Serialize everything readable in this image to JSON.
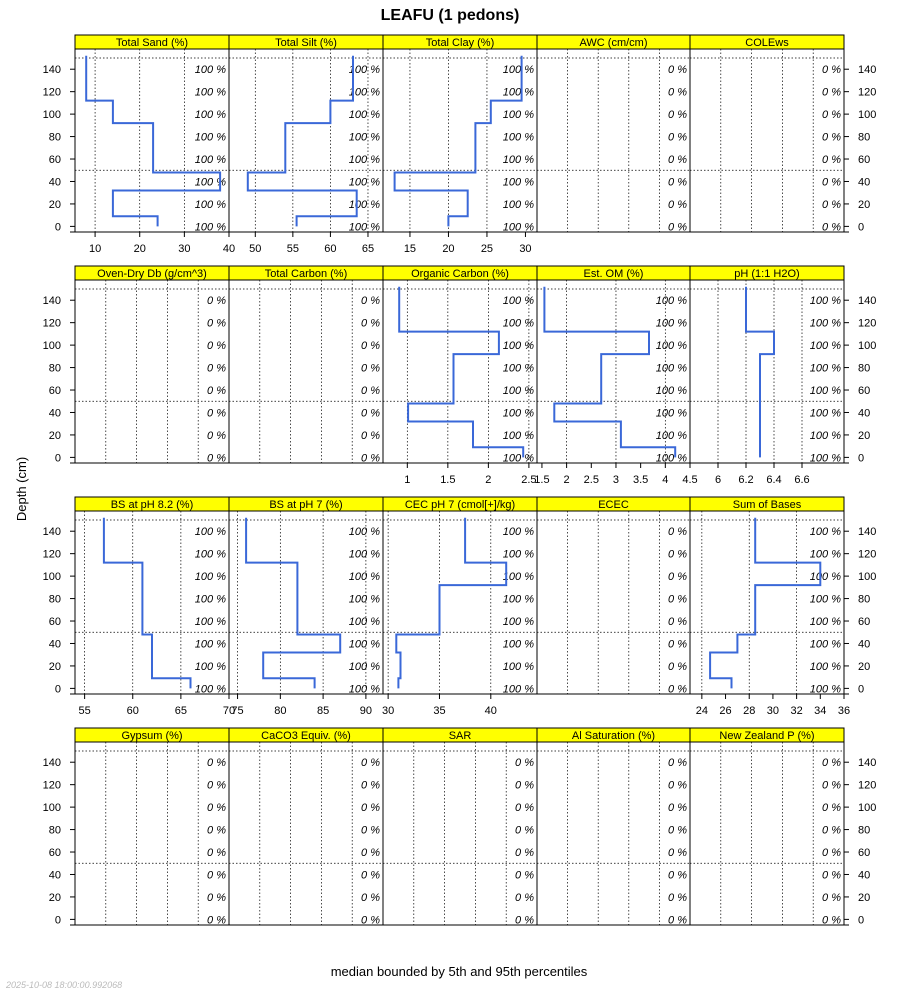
{
  "chart_data": {
    "type": "line",
    "title": "LEAFU (1 pedons)",
    "ylabel": "Depth (cm)",
    "xlabel": "median bounded by 5th and 95th percentiles",
    "timestamp": "2025-10-08 18:00:00.992068",
    "ylim": [
      158,
      -5
    ],
    "depth_ticks": [
      0,
      20,
      40,
      60,
      80,
      100,
      120,
      140
    ],
    "horizon_depths": [
      50,
      150
    ],
    "depth_levels": [
      0,
      20,
      40,
      60,
      80,
      100,
      120,
      140
    ],
    "colors": {
      "line": "#3a68d8",
      "strip": "#ffff00"
    },
    "panels": [
      {
        "name": "Total Sand (%)",
        "xlim": [
          5.5,
          40
        ],
        "ticks": [
          10,
          20,
          30,
          40
        ],
        "grid": [
          10,
          20,
          30
        ],
        "pct": [
          "100 %",
          "100 %",
          "100 %",
          "100 %",
          "100 %",
          "100 %",
          "100 %",
          "100 %"
        ],
        "profile": [
          {
            "top": 0,
            "bottom": 9,
            "value": 24
          },
          {
            "top": 9,
            "bottom": 32,
            "value": 14
          },
          {
            "top": 32,
            "bottom": 48,
            "value": 38
          },
          {
            "top": 48,
            "bottom": 92,
            "value": 23
          },
          {
            "top": 92,
            "bottom": 112,
            "value": 14
          },
          {
            "top": 112,
            "bottom": 152,
            "value": 8
          }
        ]
      },
      {
        "name": "Total Silt (%)",
        "xlim": [
          46.5,
          67
        ],
        "ticks": [
          50,
          55,
          60,
          65
        ],
        "grid": [
          50,
          55,
          60,
          65
        ],
        "pct": [
          "100 %",
          "100 %",
          "100 %",
          "100 %",
          "100 %",
          "100 %",
          "100 %",
          "100 %"
        ],
        "profile": [
          {
            "top": 0,
            "bottom": 9,
            "value": 55.5
          },
          {
            "top": 9,
            "bottom": 32,
            "value": 63.5
          },
          {
            "top": 32,
            "bottom": 48,
            "value": 49
          },
          {
            "top": 48,
            "bottom": 92,
            "value": 54
          },
          {
            "top": 92,
            "bottom": 112,
            "value": 60
          },
          {
            "top": 112,
            "bottom": 152,
            "value": 63
          }
        ]
      },
      {
        "name": "Total Clay (%)",
        "xlim": [
          11.5,
          31.5
        ],
        "ticks": [
          15,
          20,
          25,
          30
        ],
        "grid": [
          15,
          20,
          25
        ],
        "pct": [
          "100 %",
          "100 %",
          "100 %",
          "100 %",
          "100 %",
          "100 %",
          "100 %",
          "100 %"
        ],
        "profile": [
          {
            "top": 0,
            "bottom": 9,
            "value": 20
          },
          {
            "top": 9,
            "bottom": 32,
            "value": 22.5
          },
          {
            "top": 32,
            "bottom": 48,
            "value": 13
          },
          {
            "top": 48,
            "bottom": 92,
            "value": 23.5
          },
          {
            "top": 92,
            "bottom": 112,
            "value": 25.5
          },
          {
            "top": 112,
            "bottom": 152,
            "value": 29.5
          }
        ]
      },
      {
        "name": "AWC (cm/cm)",
        "xlim": [
          0,
          1
        ],
        "ticks": [],
        "grid": [
          0.2,
          0.4,
          0.6,
          0.8
        ],
        "pct": [
          "0 %",
          "0 %",
          "0 %",
          "0 %",
          "0 %",
          "0 %",
          "0 %",
          "0 %"
        ],
        "profile": []
      },
      {
        "name": "COLEws",
        "xlim": [
          0,
          1
        ],
        "ticks": [],
        "grid": [
          0.2,
          0.4,
          0.6,
          0.8
        ],
        "pct": [
          "0 %",
          "0 %",
          "0 %",
          "0 %",
          "0 %",
          "0 %",
          "0 %",
          "0 %"
        ],
        "profile": []
      },
      {
        "name": "Oven-Dry Db (g/cm^3)",
        "xlim": [
          0,
          1
        ],
        "ticks": [],
        "grid": [
          0.2,
          0.4,
          0.6,
          0.8
        ],
        "pct": [
          "0 %",
          "0 %",
          "0 %",
          "0 %",
          "0 %",
          "0 %",
          "0 %",
          "0 %"
        ],
        "profile": []
      },
      {
        "name": "Total Carbon (%)",
        "xlim": [
          0,
          1
        ],
        "ticks": [],
        "grid": [
          0.2,
          0.4,
          0.6,
          0.8
        ],
        "pct": [
          "0 %",
          "0 %",
          "0 %",
          "0 %",
          "0 %",
          "0 %",
          "0 %",
          "0 %"
        ],
        "profile": []
      },
      {
        "name": "Organic Carbon (%)",
        "xlim": [
          0.7,
          2.6
        ],
        "ticks": [
          1.0,
          1.5,
          2.0,
          2.5
        ],
        "grid": [
          1.0,
          1.5,
          2.0,
          2.5
        ],
        "pct": [
          "100 %",
          "100 %",
          "100 %",
          "100 %",
          "100 %",
          "100 %",
          "100 %",
          "100 %"
        ],
        "profile": [
          {
            "top": 0,
            "bottom": 9,
            "value": 2.43
          },
          {
            "top": 9,
            "bottom": 32,
            "value": 1.81
          },
          {
            "top": 32,
            "bottom": 48,
            "value": 1.01
          },
          {
            "top": 48,
            "bottom": 92,
            "value": 1.57
          },
          {
            "top": 92,
            "bottom": 112,
            "value": 2.13
          },
          {
            "top": 112,
            "bottom": 152,
            "value": 0.9
          }
        ]
      },
      {
        "name": "Est. OM (%)",
        "xlim": [
          1.4,
          4.5
        ],
        "ticks": [
          1.5,
          2.0,
          2.5,
          3.0,
          3.5,
          4.0,
          4.5
        ],
        "grid": [
          2.0,
          3.0,
          4.0
        ],
        "pct": [
          "100 %",
          "100 %",
          "100 %",
          "100 %",
          "100 %",
          "100 %",
          "100 %",
          "100 %"
        ],
        "profile": [
          {
            "top": 0,
            "bottom": 9,
            "value": 4.2
          },
          {
            "top": 9,
            "bottom": 32,
            "value": 3.1
          },
          {
            "top": 32,
            "bottom": 48,
            "value": 1.75
          },
          {
            "top": 48,
            "bottom": 92,
            "value": 2.7
          },
          {
            "top": 92,
            "bottom": 112,
            "value": 3.67
          },
          {
            "top": 112,
            "bottom": 152,
            "value": 1.55
          }
        ]
      },
      {
        "name": "pH (1:1 H2O)",
        "xlim": [
          5.8,
          6.9
        ],
        "ticks": [
          6.0,
          6.2,
          6.4,
          6.6
        ],
        "grid": [
          6.0,
          6.2,
          6.4,
          6.6
        ],
        "pct": [
          "100 %",
          "100 %",
          "100 %",
          "100 %",
          "100 %",
          "100 %",
          "100 %",
          "100 %"
        ],
        "profile": [
          {
            "top": 0,
            "bottom": 92,
            "value": 6.3
          },
          {
            "top": 92,
            "bottom": 112,
            "value": 6.4
          },
          {
            "top": 112,
            "bottom": 152,
            "value": 6.2
          }
        ]
      },
      {
        "name": "BS at pH 8.2 (%)",
        "xlim": [
          54,
          70
        ],
        "ticks": [
          55,
          60,
          65,
          70
        ],
        "grid": [
          55,
          60,
          65
        ],
        "pct": [
          "100 %",
          "100 %",
          "100 %",
          "100 %",
          "100 %",
          "100 %",
          "100 %",
          "100 %"
        ],
        "profile": [
          {
            "top": 0,
            "bottom": 9,
            "value": 66
          },
          {
            "top": 9,
            "bottom": 48,
            "value": 62
          },
          {
            "top": 48,
            "bottom": 112,
            "value": 61
          },
          {
            "top": 112,
            "bottom": 152,
            "value": 57
          }
        ]
      },
      {
        "name": "BS at pH 7 (%)",
        "xlim": [
          74,
          92
        ],
        "ticks": [
          75,
          80,
          85,
          90
        ],
        "grid": [
          75,
          80,
          85,
          90
        ],
        "pct": [
          "100 %",
          "100 %",
          "100 %",
          "100 %",
          "100 %",
          "100 %",
          "100 %",
          "100 %"
        ],
        "profile": [
          {
            "top": 0,
            "bottom": 9,
            "value": 84
          },
          {
            "top": 9,
            "bottom": 32,
            "value": 78
          },
          {
            "top": 32,
            "bottom": 48,
            "value": 87
          },
          {
            "top": 48,
            "bottom": 112,
            "value": 82
          },
          {
            "top": 112,
            "bottom": 152,
            "value": 76
          }
        ]
      },
      {
        "name": "CEC pH 7 (cmol[+]/kg)",
        "xlim": [
          29.5,
          44.5
        ],
        "ticks": [
          30,
          35,
          40
        ],
        "grid": [
          30,
          35,
          40
        ],
        "pct": [
          "100 %",
          "100 %",
          "100 %",
          "100 %",
          "100 %",
          "100 %",
          "100 %",
          "100 %"
        ],
        "profile": [
          {
            "top": 0,
            "bottom": 9,
            "value": 31
          },
          {
            "top": 9,
            "bottom": 32,
            "value": 31.2
          },
          {
            "top": 32,
            "bottom": 48,
            "value": 30.8
          },
          {
            "top": 48,
            "bottom": 92,
            "value": 35
          },
          {
            "top": 92,
            "bottom": 112,
            "value": 41.5
          },
          {
            "top": 112,
            "bottom": 152,
            "value": 37.5
          }
        ]
      },
      {
        "name": "ECEC",
        "xlim": [
          0,
          1
        ],
        "ticks": [],
        "grid": [
          0.2,
          0.4,
          0.6,
          0.8
        ],
        "pct": [
          "0 %",
          "0 %",
          "0 %",
          "0 %",
          "0 %",
          "0 %",
          "0 %",
          "0 %"
        ],
        "profile": []
      },
      {
        "name": "Sum of Bases",
        "xlim": [
          23,
          36
        ],
        "ticks": [
          24,
          26,
          28,
          30,
          32,
          34,
          36
        ],
        "grid": [
          24,
          28,
          32
        ],
        "pct": [
          "100 %",
          "100 %",
          "100 %",
          "100 %",
          "100 %",
          "100 %",
          "100 %",
          "100 %"
        ],
        "profile": [
          {
            "top": 0,
            "bottom": 9,
            "value": 26.5
          },
          {
            "top": 9,
            "bottom": 32,
            "value": 24.7
          },
          {
            "top": 32,
            "bottom": 48,
            "value": 27
          },
          {
            "top": 48,
            "bottom": 92,
            "value": 28.5
          },
          {
            "top": 92,
            "bottom": 112,
            "value": 34
          },
          {
            "top": 112,
            "bottom": 152,
            "value": 28.5
          }
        ]
      },
      {
        "name": "Gypsum (%)",
        "xlim": [
          0,
          1
        ],
        "ticks": [],
        "grid": [
          0.2,
          0.4,
          0.6,
          0.8
        ],
        "pct": [
          "0 %",
          "0 %",
          "0 %",
          "0 %",
          "0 %",
          "0 %",
          "0 %",
          "0 %"
        ],
        "profile": []
      },
      {
        "name": "CaCO3 Equiv. (%)",
        "xlim": [
          0,
          1
        ],
        "ticks": [],
        "grid": [
          0.2,
          0.4,
          0.6,
          0.8
        ],
        "pct": [
          "0 %",
          "0 %",
          "0 %",
          "0 %",
          "0 %",
          "0 %",
          "0 %",
          "0 %"
        ],
        "profile": []
      },
      {
        "name": "SAR",
        "xlim": [
          0,
          1
        ],
        "ticks": [],
        "grid": [
          0.2,
          0.4,
          0.6,
          0.8
        ],
        "pct": [
          "0 %",
          "0 %",
          "0 %",
          "0 %",
          "0 %",
          "0 %",
          "0 %",
          "0 %"
        ],
        "profile": []
      },
      {
        "name": "Al Saturation (%)",
        "xlim": [
          0,
          1
        ],
        "ticks": [],
        "grid": [
          0.2,
          0.4,
          0.6,
          0.8
        ],
        "pct": [
          "0 %",
          "0 %",
          "0 %",
          "0 %",
          "0 %",
          "0 %",
          "0 %",
          "0 %"
        ],
        "profile": []
      },
      {
        "name": "New Zealand P (%)",
        "xlim": [
          0,
          1
        ],
        "ticks": [],
        "grid": [
          0.2,
          0.4,
          0.6,
          0.8
        ],
        "pct": [
          "0 %",
          "0 %",
          "0 %",
          "0 %",
          "0 %",
          "0 %",
          "0 %",
          "0 %"
        ],
        "profile": []
      }
    ]
  }
}
